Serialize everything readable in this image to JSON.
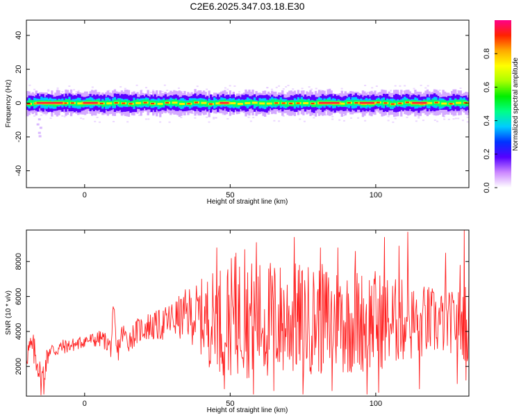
{
  "title": "C2E6.2025.347.03.18.E30",
  "chart_data": [
    {
      "type": "heatmap",
      "xlabel": "Height of straight line (km)",
      "ylabel": "Frequency (Hz)",
      "xlim": [
        -20,
        132
      ],
      "ylim": [
        -50,
        49
      ],
      "xticks": [
        0,
        50,
        100
      ],
      "xtick_labels": [
        "0",
        "50",
        "100"
      ],
      "yticks": [
        -40,
        -20,
        0,
        20,
        40
      ],
      "ytick_labels": [
        "-40",
        "-20",
        "0",
        "20",
        "40"
      ],
      "colorbar": {
        "label": "Normalized spectral amplitude",
        "range": [
          0,
          1
        ],
        "ticks": [
          0.0,
          0.2,
          0.4,
          0.6,
          0.8
        ],
        "tick_labels": [
          "0.0",
          "0.2",
          "0.4",
          "0.6",
          "0.8"
        ],
        "colors": [
          "#ffffff",
          "#cc88ff",
          "#5500ff",
          "#0033ff",
          "#00ccff",
          "#00ff88",
          "#00ee00",
          "#aaff00",
          "#ffff00",
          "#ffaa00",
          "#ff2200",
          "#ff0088"
        ]
      },
      "band": {
        "center_hz": 0,
        "core_halfwidth_hz": [
          2,
          4
        ],
        "outer_halfwidth_hz": [
          5,
          8
        ],
        "hot_segments_km": [
          [
            -17,
            -7
          ],
          [
            -1,
            5
          ],
          [
            46,
            50
          ],
          [
            80,
            88
          ],
          [
            94,
            100
          ],
          [
            112,
            118
          ]
        ]
      }
    },
    {
      "type": "line",
      "xlabel": "Height of straight line (km)",
      "ylabel": "SNR (10 * v/v)",
      "xlim": [
        -20,
        132
      ],
      "ylim": [
        300,
        9800
      ],
      "xticks": [
        0,
        50,
        100
      ],
      "xtick_labels": [
        "0",
        "50",
        "100"
      ],
      "yticks": [
        2000,
        4000,
        6000,
        8000
      ],
      "ytick_labels": [
        "2000",
        "4000",
        "6000",
        "8000"
      ],
      "series": [
        {
          "color": "#ff2020",
          "x": [
            -20,
            -18,
            -16,
            -15,
            -14,
            -13,
            -12,
            -10,
            -8,
            -5,
            -2,
            0,
            3,
            6,
            8,
            9,
            10,
            11,
            13,
            15,
            18,
            20,
            22,
            25,
            28,
            30,
            33,
            35,
            38,
            40,
            42,
            44,
            46,
            48,
            50,
            52,
            55,
            58,
            60,
            62,
            65,
            68,
            70,
            73,
            75,
            78,
            80,
            83,
            85,
            88,
            90,
            92,
            95,
            98,
            100,
            102,
            104,
            106,
            108,
            110,
            112,
            115,
            118,
            120,
            123,
            125,
            128,
            130,
            131,
            132
          ],
          "mean": [
            2800,
            3000,
            2300,
            1100,
            1700,
            2400,
            3000,
            2900,
            3100,
            3200,
            3300,
            3500,
            3500,
            3600,
            3300,
            3100,
            5300,
            2700,
            3900,
            3500,
            4000,
            4200,
            4300,
            4300,
            4500,
            4700,
            4800,
            5000,
            4900,
            4800,
            4700,
            4600,
            4700,
            4700,
            4800,
            4900,
            4800,
            4700,
            4700,
            4600,
            4700,
            4600,
            4700,
            4700,
            4600,
            4700,
            4700,
            4600,
            4600,
            4700,
            4600,
            4600,
            4600,
            4700,
            4700,
            4600,
            4600,
            4500,
            4600,
            4600,
            4500,
            4500,
            4600,
            4500,
            4500,
            4500,
            4600,
            4500,
            4500,
            4700
          ],
          "amplitude": [
            900,
            1000,
            1100,
            800,
            900,
            700,
            500,
            450,
            450,
            400,
            400,
            420,
            450,
            500,
            550,
            600,
            600,
            800,
            700,
            700,
            750,
            800,
            850,
            900,
            1000,
            1100,
            1300,
            1500,
            1800,
            2200,
            2600,
            2900,
            3100,
            3300,
            3400,
            3500,
            3500,
            3400,
            3400,
            3500,
            3500,
            3400,
            3300,
            3300,
            3300,
            3200,
            3200,
            3300,
            3300,
            3200,
            3100,
            3100,
            3000,
            3000,
            2900,
            2800,
            2700,
            2600,
            2500,
            2400,
            2300,
            2200,
            2100,
            2000,
            1900,
            1800,
            1800,
            2000,
            2600,
            2800
          ],
          "spikes": [
            [
              10,
              5300
            ],
            [
              45.5,
              8800
            ],
            [
              52,
              8500
            ],
            [
              55,
              8700
            ],
            [
              59,
              9100
            ],
            [
              65,
              9400
            ],
            [
              72,
              9400
            ],
            [
              81,
              8800
            ],
            [
              87,
              8800
            ],
            [
              93,
              8600
            ],
            [
              101,
              9500
            ],
            [
              103,
              9400
            ],
            [
              108,
              8900
            ],
            [
              111,
              9700
            ],
            [
              124,
              8500
            ],
            [
              130.5,
              9800
            ],
            [
              129,
              7800
            ]
          ],
          "dips": [
            [
              -14,
              400
            ],
            [
              48,
              700
            ],
            [
              58,
              400
            ],
            [
              65,
              600
            ],
            [
              75,
              400
            ],
            [
              85,
              600
            ],
            [
              97,
              400
            ],
            [
              101,
              500
            ],
            [
              115,
              700
            ],
            [
              128,
              1000
            ],
            [
              131,
              1200
            ]
          ]
        }
      ]
    }
  ]
}
